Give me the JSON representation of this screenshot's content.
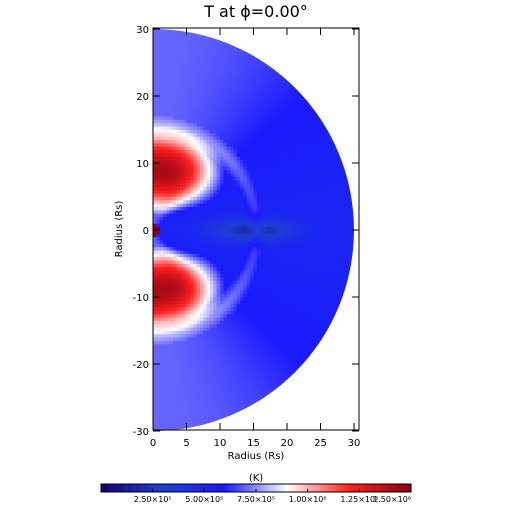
{
  "chart_data": {
    "type": "heatmap",
    "title": "T at ϕ=0.00°",
    "xlabel": "Radius (Rs)",
    "ylabel": "Radius (Rs)",
    "xlim": [
      0,
      30
    ],
    "ylim": [
      -30,
      30
    ],
    "x_ticks": [
      0,
      5,
      10,
      15,
      20,
      25,
      30
    ],
    "y_ticks": [
      -30,
      -20,
      -10,
      0,
      10,
      20,
      30
    ],
    "domain": "half-disk, r in [1, 30] Rs, x >= 0",
    "colorbar": {
      "label": "(K)",
      "range": [
        0,
        1500000
      ],
      "ticks": [
        250000,
        500000,
        750000,
        1000000,
        1250000,
        1500000
      ],
      "tick_labels": [
        "2.50×10⁵",
        "5.00×10⁵",
        "7.50×10⁵",
        "1.00×10⁶",
        "1.25×10⁶",
        "1.50×10⁶"
      ],
      "colormap": [
        "#16006b",
        "#1f3fd6",
        "#1a1aff",
        "#ffffff",
        "#ff2020",
        "#8a0014"
      ]
    }
  }
}
